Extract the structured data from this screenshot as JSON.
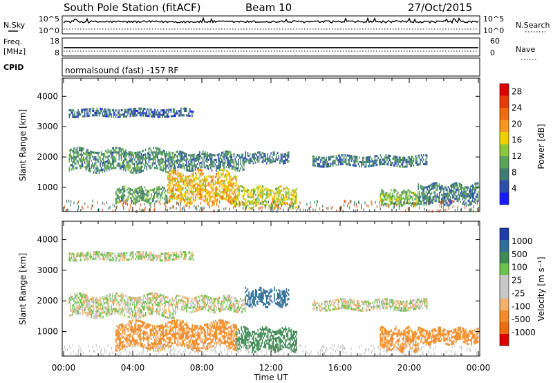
{
  "header": {
    "station": "South Pole Station (fitACF)",
    "beam": "Beam 10",
    "date": "27/Oct/2015"
  },
  "summary_panels": {
    "left_labels": [
      "N.Sky",
      "Freq.",
      "[MHz]",
      "CPID"
    ],
    "right_labels": [
      "N.Search",
      "Nave"
    ],
    "noise_ticks": [
      "10^5",
      "10^0"
    ],
    "freq_ticks": [
      "18",
      "8"
    ],
    "nave_ticks": [
      "60",
      "0"
    ],
    "cpid_text": "normalsound (fast) -157 RF"
  },
  "chart_data": [
    {
      "type": "heatmap",
      "panel": "power",
      "ylabel": "Slant Range [km]",
      "ylim": [
        200,
        4600
      ],
      "y_ticks": [
        "1000",
        "2000",
        "3000",
        "4000"
      ],
      "x_ticks": [
        "00:00",
        "04:00",
        "08:00",
        "12:00",
        "16:00",
        "20:00",
        "00:00"
      ],
      "colorbar": {
        "label": "Power [dB]",
        "ticks": [
          "4",
          "8",
          "12",
          "16",
          "20",
          "24",
          "28"
        ],
        "colors": [
          "#1a1aff",
          "#2c4fa8",
          "#3f7a73",
          "#5aa45a",
          "#8cc63c",
          "#f0d000",
          "#f59a1e",
          "#f06a12",
          "#e83a0a",
          "#e00000"
        ]
      },
      "regions": [
        {
          "t0": 0.3,
          "t1": 6.5,
          "r0": 1550,
          "r1": 2250,
          "level": 9
        },
        {
          "t0": 6.5,
          "t1": 10.5,
          "r0": 1600,
          "r1": 2150,
          "level": 8
        },
        {
          "t0": 10.5,
          "t1": 13.0,
          "r0": 1850,
          "r1": 2150,
          "level": 7
        },
        {
          "t0": 14.4,
          "t1": 21.0,
          "r0": 1700,
          "r1": 2050,
          "level": 7
        },
        {
          "t0": 0.3,
          "t1": 7.5,
          "r0": 3350,
          "r1": 3600,
          "level": 6
        },
        {
          "t0": 3.0,
          "t1": 6.0,
          "r0": 550,
          "r1": 1000,
          "level": 10
        },
        {
          "t0": 6.0,
          "t1": 10.0,
          "r0": 500,
          "r1": 1500,
          "level": 18
        },
        {
          "t0": 10.0,
          "t1": 13.5,
          "r0": 400,
          "r1": 1000,
          "level": 15
        },
        {
          "t0": 18.3,
          "t1": 20.5,
          "r0": 400,
          "r1": 900,
          "level": 12
        },
        {
          "t0": 20.5,
          "t1": 24.0,
          "r0": 500,
          "r1": 1100,
          "level": 8
        }
      ]
    },
    {
      "type": "heatmap",
      "panel": "velocity",
      "ylabel": "Slant Range [km]",
      "ylim": [
        200,
        4600
      ],
      "y_ticks": [
        "1000",
        "2000",
        "3000",
        "4000"
      ],
      "x_ticks": [
        "00:00",
        "04:00",
        "08:00",
        "12:00",
        "16:00",
        "20:00",
        "00:00"
      ],
      "xlabel": "Time UT",
      "colorbar": {
        "label": "Velocity [m s⁻¹]",
        "ticks": [
          "1000",
          "500",
          "100",
          "25",
          "-25",
          "-100",
          "-500",
          "-1000"
        ],
        "colors": [
          "#1f3ea8",
          "#2f6f9a",
          "#3f8a55",
          "#6cc24a",
          "#c8c8c8",
          "#c8c8c8",
          "#f5b06a",
          "#f28c28",
          "#f06a10",
          "#e00000"
        ]
      },
      "regions": [
        {
          "t0": 0.3,
          "t1": 6.5,
          "r0": 1550,
          "r1": 2200,
          "v": 0
        },
        {
          "t0": 6.5,
          "t1": 10.5,
          "r0": 1700,
          "r1": 2150,
          "v": 5
        },
        {
          "t0": 10.5,
          "t1": 13.0,
          "r0": 1850,
          "r1": 2400,
          "v": 600
        },
        {
          "t0": 14.4,
          "t1": 21.0,
          "r0": 1700,
          "r1": 2050,
          "v": 0
        },
        {
          "t0": 0.3,
          "t1": 7.5,
          "r0": 3350,
          "r1": 3600,
          "v": 10
        },
        {
          "t0": 3.0,
          "t1": 10.0,
          "r0": 500,
          "r1": 1300,
          "v": -300
        },
        {
          "t0": 10.0,
          "t1": 13.5,
          "r0": 400,
          "r1": 1100,
          "v": 200
        },
        {
          "t0": 18.3,
          "t1": 20.5,
          "r0": 400,
          "r1": 1100,
          "v": -300
        },
        {
          "t0": 20.5,
          "t1": 24.0,
          "r0": 600,
          "r1": 1100,
          "v": -200
        }
      ]
    }
  ]
}
